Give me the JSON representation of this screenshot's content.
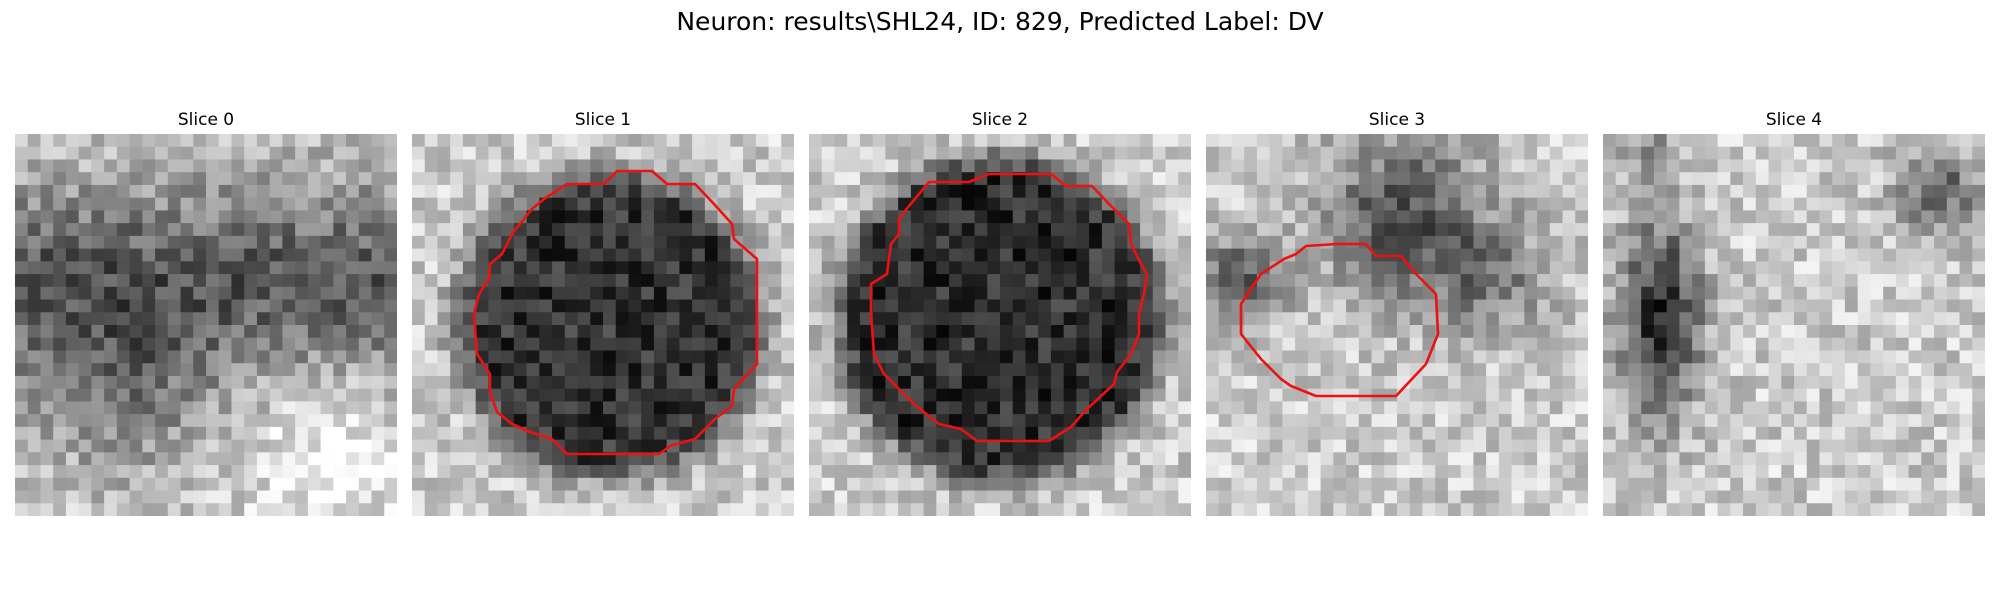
{
  "figure": {
    "title": "Neuron: results\\SHL24, ID: 829, Predicted Label: DV"
  },
  "colors": {
    "background": "#ffffff",
    "contour": "#ee1111",
    "colormap": "grayscale"
  },
  "panels": [
    {
      "title": "Slice 0",
      "has_contour": false,
      "dark_region": "diffuse band across upper half"
    },
    {
      "title": "Slice 1",
      "has_contour": true,
      "dark_region": "central round blob"
    },
    {
      "title": "Slice 2",
      "has_contour": true,
      "dark_region": "central round blob"
    },
    {
      "title": "Slice 3",
      "has_contour": true,
      "dark_region": "upper-right blob, contour lower-center"
    },
    {
      "title": "Slice 4",
      "has_contour": false,
      "dark_region": "left-side vertical band"
    }
  ]
}
